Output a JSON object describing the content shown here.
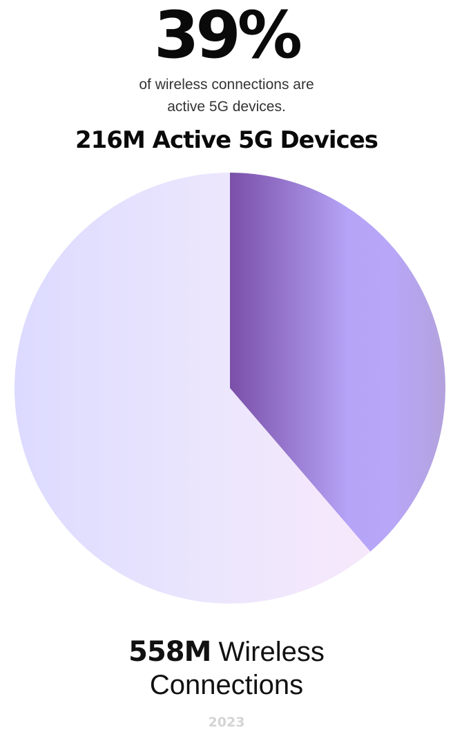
{
  "headline": {
    "value": "39%",
    "caption_line1": "of wireless connections are",
    "caption_line2": "active 5G devices."
  },
  "chart_title": "216M Active 5G Devices",
  "total": {
    "value": "558M",
    "label_line1": " Wireless",
    "label_line2": "Connections"
  },
  "year": "2023",
  "colors": {
    "active_dark": "#7a4fa8",
    "active_light": "#b5a4f7",
    "rest_left": "#dcdaff",
    "rest_right": "#f7e8fb",
    "text": "#0a0a0a",
    "year": "#d4d4d4"
  },
  "chart_data": {
    "type": "pie",
    "title": "216M Active 5G Devices",
    "total": 558,
    "unit": "M",
    "slices": [
      {
        "label": "Active 5G Devices",
        "value": 216
      },
      {
        "label": "",
        "value": 342
      }
    ],
    "percent_shown": 39
  }
}
